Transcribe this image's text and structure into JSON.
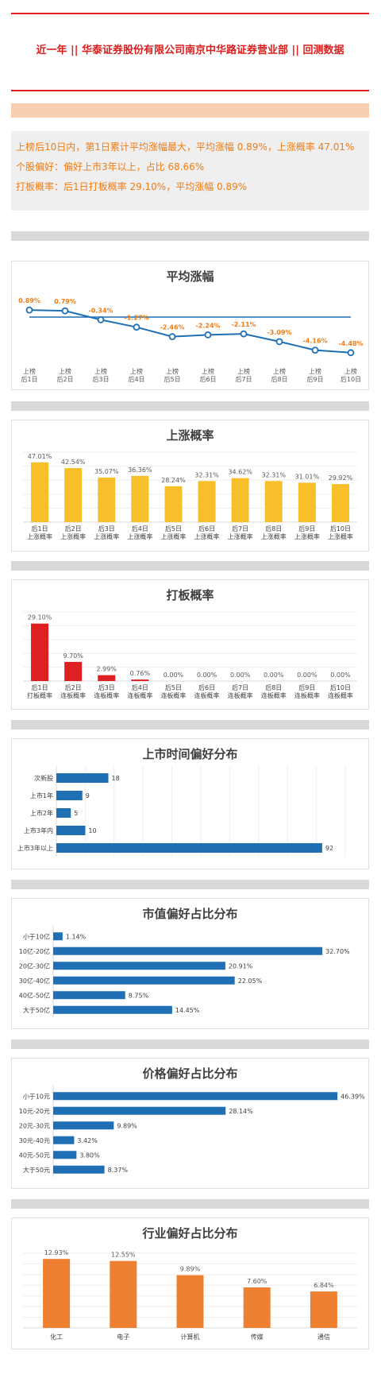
{
  "header": {
    "title": "近一年 || 华泰证券股份有限公司南京中华路证券营业部 || 回测数据"
  },
  "summary": {
    "line1": "上榜后10日内，第1日累计平均涨幅最大，平均涨幅 0.89%，上涨概率 47.01%",
    "line2": "个股偏好：偏好上市3年以上，占比 68.66%",
    "line3": "打板概率：后1日打板概率 29.10%，平均涨幅 0.89%"
  },
  "colors": {
    "accent_red": "#e02020",
    "orange_text": "#f07c14",
    "blue": "#1f6fb5",
    "yellow": "#f7c02a",
    "red_bar": "#e02020",
    "orange_bar": "#ee8032"
  },
  "chart_data": [
    {
      "type": "line",
      "title": "平均涨幅",
      "categories": [
        "上榜\n后1日",
        "上榜\n后2日",
        "上榜\n后3日",
        "上榜\n后4日",
        "上榜\n后5日",
        "上榜\n后6日",
        "上榜\n后7日",
        "上榜\n后8日",
        "上榜\n后9日",
        "上榜\n后10日"
      ],
      "values": [
        0.89,
        0.79,
        -0.34,
        -1.27,
        -2.46,
        -2.24,
        -2.11,
        -3.09,
        -4.16,
        -4.48
      ],
      "labels": [
        "0.89%",
        "0.79%",
        "-0.34%",
        "-1.27%",
        "-2.46%",
        "-2.24%",
        "-2.11%",
        "-3.09%",
        "-4.16%",
        "-4.48%"
      ],
      "ylim": [
        -5,
        1.5
      ],
      "grid": false
    },
    {
      "type": "bar",
      "title": "上涨概率",
      "categories": [
        "后1日\n上涨概率",
        "后2日\n上涨概率",
        "后3日\n上涨概率",
        "后4日\n上涨概率",
        "后5日\n上涨概率",
        "后6日\n上涨概率",
        "后7日\n上涨概率",
        "后8日\n上涨概率",
        "后9日\n上涨概率",
        "后10日\n上涨概率"
      ],
      "values": [
        47.01,
        42.54,
        35.07,
        36.36,
        28.24,
        32.31,
        34.62,
        32.31,
        31.01,
        29.92
      ],
      "labels": [
        "47.01%",
        "42.54%",
        "35.07%",
        "36.36%",
        "28.24%",
        "32.31%",
        "34.62%",
        "32.31%",
        "31.01%",
        "29.92%"
      ],
      "ylim": [
        0,
        55
      ],
      "grid": true
    },
    {
      "type": "bar",
      "title": "打板概率",
      "categories": [
        "后1日\n打板概率",
        "后2日\n连板概率",
        "后3日\n连板概率",
        "后4日\n连板概率",
        "后5日\n连板概率",
        "后6日\n连板概率",
        "后7日\n连板概率",
        "后8日\n连板概率",
        "后9日\n连板概率",
        "后10日\n连板概率"
      ],
      "values": [
        29.1,
        9.7,
        2.99,
        0.76,
        0,
        0,
        0,
        0,
        0,
        0
      ],
      "labels": [
        "29.10%",
        "9.70%",
        "2.99%",
        "0.76%",
        "0.00%",
        "0.00%",
        "0.00%",
        "0.00%",
        "0.00%",
        "0.00%"
      ],
      "ylim": [
        0,
        35
      ],
      "grid": true
    },
    {
      "type": "bar",
      "orientation": "horizontal",
      "title": "上市时间偏好分布",
      "categories": [
        "次新股",
        "上市1年",
        "上市2年",
        "上市3年内",
        "上市3年以上"
      ],
      "values": [
        18,
        9,
        5,
        10,
        92
      ],
      "labels": [
        "18",
        "9",
        "5",
        "10",
        "92"
      ],
      "xlim": [
        0,
        100
      ],
      "grid": true
    },
    {
      "type": "bar",
      "orientation": "horizontal",
      "title": "市值偏好占比分布",
      "categories": [
        "小于10亿",
        "10亿-20亿",
        "20亿-30亿",
        "30亿-40亿",
        "40亿-50亿",
        "大于50亿"
      ],
      "values": [
        1.14,
        32.7,
        20.91,
        22.05,
        8.75,
        14.45
      ],
      "labels": [
        "1.14%",
        "32.70%",
        "20.91%",
        "22.05%",
        "8.75%",
        "14.45%"
      ],
      "xlim": [
        0,
        35
      ],
      "grid": false
    },
    {
      "type": "bar",
      "orientation": "horizontal",
      "title": "价格偏好占比分布",
      "categories": [
        "小于10元",
        "10元-20元",
        "20元-30元",
        "30元-40元",
        "40元-50元",
        "大于50元"
      ],
      "values": [
        46.39,
        28.14,
        9.89,
        3.42,
        3.8,
        8.37
      ],
      "labels": [
        "46.39%",
        "28.14%",
        "9.89%",
        "3.42%",
        "3.80%",
        "8.37%"
      ],
      "xlim": [
        0,
        50
      ],
      "grid": false
    },
    {
      "type": "bar",
      "title": "行业偏好占比分布",
      "categories": [
        "化工",
        "电子",
        "计算机",
        "传媒",
        "通信"
      ],
      "values": [
        12.93,
        12.55,
        9.89,
        7.6,
        6.84
      ],
      "labels": [
        "12.93%",
        "12.55%",
        "9.89%",
        "7.60%",
        "6.84%"
      ],
      "ylim": [
        0,
        14
      ],
      "grid": true
    }
  ]
}
